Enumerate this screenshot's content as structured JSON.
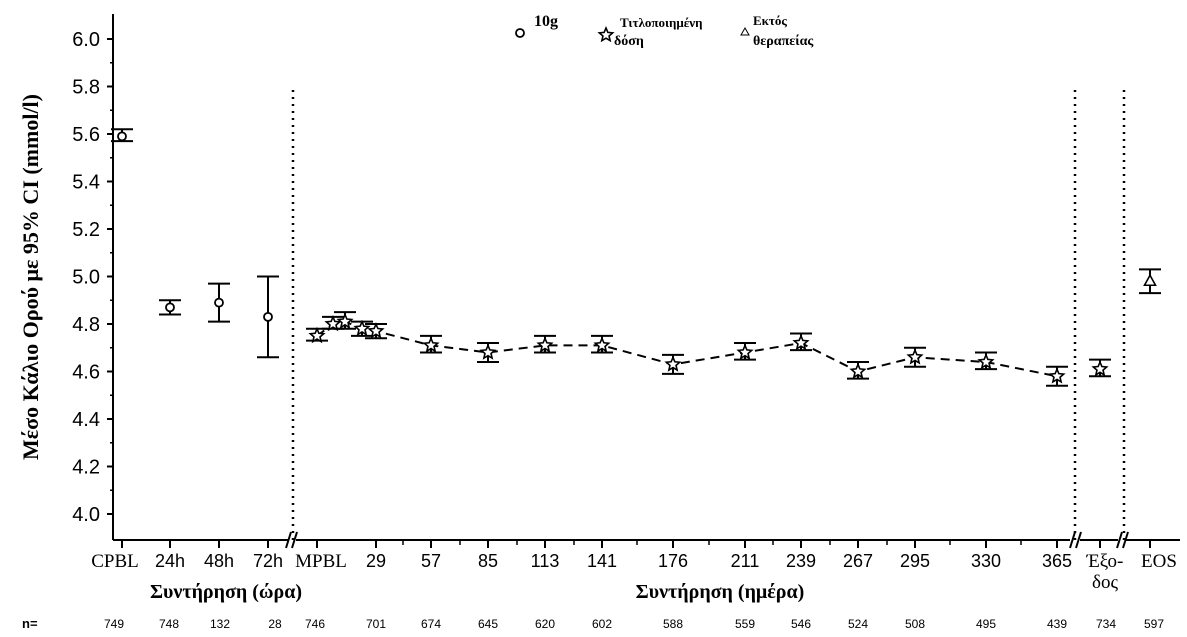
{
  "chart_data": {
    "type": "scatter",
    "ylabel": "Μέσο Κάλιο Ορού με 95% CI (mmol/l)",
    "ylim": [
      3.9,
      6.2
    ],
    "y_ticks": [
      "4.0",
      "4.2",
      "4.4",
      "4.6",
      "4.8",
      "5.0",
      "5.2",
      "5.4",
      "5.6",
      "5.8",
      "6.0"
    ],
    "grid": false,
    "legend_position": "top",
    "legend": [
      {
        "key": "g10",
        "label": "10g",
        "marker": "circle"
      },
      {
        "key": "titrated",
        "label_line1": "Τιτλοποιημένη",
        "label_line2": "δόση",
        "marker": "star"
      },
      {
        "key": "off",
        "label_line1": "Εκτός",
        "label_line2": "θεραπείας",
        "marker": "triangle"
      }
    ],
    "x_section_labels": {
      "hours": "Συντήρηση (ώρα)",
      "days": "Συντήρηση (ημέρα)"
    },
    "n_label": "n=",
    "series": [
      {
        "name": "10g",
        "marker": "circle",
        "connected": false,
        "points": [
          {
            "x": "CPBL",
            "y": 5.59,
            "lo": 5.57,
            "hi": 5.62,
            "n": "749"
          },
          {
            "x": "24h",
            "y": 4.87,
            "lo": 4.84,
            "hi": 4.9,
            "n": "748"
          },
          {
            "x": "48h",
            "y": 4.89,
            "lo": 4.81,
            "hi": 4.97,
            "n": "132"
          },
          {
            "x": "72h",
            "y": 4.83,
            "lo": 4.66,
            "hi": 5.0,
            "n": "28"
          }
        ]
      },
      {
        "name": "Τιτλοποιημένη δόση",
        "marker": "star",
        "connected": true,
        "points": [
          {
            "x": "MPBL",
            "y": 4.75,
            "lo": 4.73,
            "hi": 4.78,
            "n": "746",
            "tick_label": "MPBL"
          },
          {
            "x": "8",
            "y": 4.8,
            "lo": 4.78,
            "hi": 4.83,
            "n": "",
            "tick_label": ""
          },
          {
            "x": "15",
            "y": 4.81,
            "lo": 4.78,
            "hi": 4.85,
            "n": "",
            "tick_label": ""
          },
          {
            "x": "22",
            "y": 4.78,
            "lo": 4.75,
            "hi": 4.81,
            "n": "",
            "tick_label": ""
          },
          {
            "x": "29",
            "y": 4.77,
            "lo": 4.74,
            "hi": 4.8,
            "n": "701",
            "tick_label": "29"
          },
          {
            "x": "57",
            "y": 4.71,
            "lo": 4.68,
            "hi": 4.75,
            "n": "674",
            "tick_label": "57"
          },
          {
            "x": "85",
            "y": 4.68,
            "lo": 4.64,
            "hi": 4.72,
            "n": "645",
            "tick_label": "85"
          },
          {
            "x": "113",
            "y": 4.71,
            "lo": 4.68,
            "hi": 4.75,
            "n": "620",
            "tick_label": "113"
          },
          {
            "x": "141",
            "y": 4.71,
            "lo": 4.68,
            "hi": 4.75,
            "n": "602",
            "tick_label": "141"
          },
          {
            "x": "176",
            "y": 4.63,
            "lo": 4.59,
            "hi": 4.67,
            "n": "588",
            "tick_label": "176"
          },
          {
            "x": "211",
            "y": 4.68,
            "lo": 4.65,
            "hi": 4.72,
            "n": "559",
            "tick_label": "211"
          },
          {
            "x": "239",
            "y": 4.72,
            "lo": 4.69,
            "hi": 4.76,
            "n": "546",
            "tick_label": "239"
          },
          {
            "x": "267",
            "y": 4.6,
            "lo": 4.57,
            "hi": 4.64,
            "n": "524",
            "tick_label": "267"
          },
          {
            "x": "295",
            "y": 4.66,
            "lo": 4.62,
            "hi": 4.7,
            "n": "508",
            "tick_label": "295"
          },
          {
            "x": "330",
            "y": 4.64,
            "lo": 4.61,
            "hi": 4.68,
            "n": "495",
            "tick_label": "330"
          },
          {
            "x": "365",
            "y": 4.58,
            "lo": 4.54,
            "hi": 4.62,
            "n": "439",
            "tick_label": "365"
          },
          {
            "x": "exit",
            "y": 4.61,
            "lo": 4.58,
            "hi": 4.65,
            "n": "734",
            "tick_label": "Έξο-|δος",
            "connected": false
          }
        ]
      },
      {
        "name": "Εκτός θεραπείας",
        "marker": "triangle",
        "connected": false,
        "points": [
          {
            "x": "EOS",
            "y": 4.98,
            "lo": 4.93,
            "hi": 5.03,
            "n": "597",
            "tick_label": "EOS"
          }
        ]
      }
    ],
    "hour_tick_labels": [
      "CPBL",
      "24h",
      "48h",
      "72h"
    ]
  }
}
